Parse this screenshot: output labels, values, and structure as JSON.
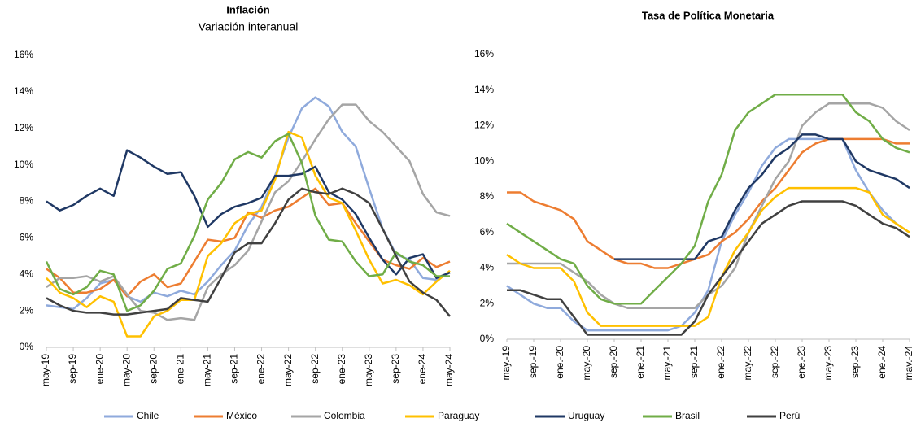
{
  "chart_data": [
    {
      "type": "line",
      "title": "Inflación",
      "subtitle": "Variación interanual",
      "categories": [
        "may-19",
        null,
        "sep-19",
        null,
        "ene-20",
        null,
        "may-20",
        null,
        "sep-20",
        null,
        "ene-21",
        null,
        "may-21",
        null,
        "sep-21",
        null,
        "ene-22",
        null,
        "may-22",
        null,
        "sep-22",
        null,
        "ene-23",
        null,
        "may-23",
        null,
        "sep-23",
        null,
        "ene-24",
        null,
        "may-24"
      ],
      "ylim": [
        0,
        16
      ],
      "yticks": [
        {
          "value": 0,
          "label": "0%"
        },
        {
          "value": 2,
          "label": "2%"
        },
        {
          "value": 4,
          "label": "4%"
        },
        {
          "value": 6,
          "label": "6%"
        },
        {
          "value": 8,
          "label": "8%"
        },
        {
          "value": 10,
          "label": "10%"
        },
        {
          "value": 12,
          "label": "12%"
        },
        {
          "value": 14,
          "label": "14%"
        },
        {
          "value": 16,
          "label": "16%"
        }
      ],
      "series": [
        {
          "name": "Chile",
          "color": "#8faadc",
          "values": [
            2.3,
            2.2,
            2.1,
            2.7,
            3.5,
            3.7,
            2.8,
            2.5,
            3.0,
            2.8,
            3.1,
            2.9,
            3.6,
            4.5,
            5.3,
            6.7,
            7.7,
            9.4,
            11.5,
            13.1,
            13.7,
            13.2,
            11.8,
            11.0,
            8.7,
            6.5,
            5.1,
            4.8,
            3.8,
            3.7,
            4.1
          ]
        },
        {
          "name": "México",
          "color": "#ed7d31",
          "values": [
            4.3,
            3.8,
            3.0,
            3.0,
            3.2,
            3.7,
            2.8,
            3.6,
            4.0,
            3.3,
            3.5,
            4.7,
            5.9,
            5.8,
            6.0,
            7.4,
            7.1,
            7.5,
            7.7,
            8.2,
            8.7,
            7.8,
            7.9,
            6.8,
            5.8,
            4.8,
            4.5,
            4.3,
            4.9,
            4.4,
            4.7
          ]
        },
        {
          "name": "Colombia",
          "color": "#a5a5a5",
          "values": [
            3.3,
            3.8,
            3.8,
            3.9,
            3.6,
            3.9,
            2.9,
            2.0,
            1.9,
            1.5,
            1.6,
            1.5,
            3.3,
            4.0,
            4.5,
            5.3,
            6.9,
            8.5,
            9.1,
            10.2,
            11.4,
            12.5,
            13.3,
            13.3,
            12.4,
            11.8,
            11.0,
            10.2,
            8.4,
            7.4,
            7.2
          ]
        },
        {
          "name": "Paraguay",
          "color": "#ffc000",
          "values": [
            3.8,
            3.0,
            2.7,
            2.2,
            2.8,
            2.5,
            0.6,
            0.6,
            1.7,
            2.0,
            2.6,
            2.6,
            5.0,
            5.7,
            6.8,
            7.3,
            7.5,
            9.2,
            11.8,
            11.5,
            9.4,
            8.2,
            7.9,
            6.4,
            4.8,
            3.5,
            3.7,
            3.4,
            2.9,
            3.6,
            4.2
          ]
        },
        {
          "name": "Uruguay",
          "color": "#1f3864",
          "values": [
            8.0,
            7.5,
            7.8,
            8.3,
            8.7,
            8.3,
            10.8,
            10.4,
            9.9,
            9.5,
            9.6,
            8.3,
            6.6,
            7.3,
            7.7,
            7.9,
            8.2,
            9.4,
            9.4,
            9.5,
            9.9,
            8.5,
            8.1,
            7.3,
            6.0,
            4.8,
            4.0,
            4.9,
            5.1,
            3.8,
            4.1
          ]
        },
        {
          "name": "Brasil",
          "color": "#70ad47",
          "values": [
            4.7,
            3.2,
            2.9,
            3.3,
            4.2,
            4.0,
            2.0,
            2.3,
            3.1,
            4.3,
            4.6,
            6.1,
            8.1,
            9.0,
            10.3,
            10.7,
            10.4,
            11.3,
            11.7,
            10.1,
            7.2,
            5.9,
            5.8,
            4.7,
            3.9,
            4.0,
            5.2,
            4.7,
            4.5,
            3.9,
            3.9
          ]
        },
        {
          "name": "Perú",
          "color": "#404040",
          "values": [
            2.7,
            2.3,
            2.0,
            1.9,
            1.9,
            1.8,
            1.8,
            1.9,
            2.0,
            2.1,
            2.7,
            2.6,
            2.5,
            3.8,
            5.2,
            5.7,
            5.7,
            6.8,
            8.1,
            8.7,
            8.5,
            8.4,
            8.7,
            8.4,
            7.9,
            6.5,
            5.0,
            3.6,
            3.0,
            2.6,
            1.7
          ]
        }
      ]
    },
    {
      "type": "line",
      "title": "Tasa de Política Monetaria",
      "categories": [
        "may.-19",
        null,
        "sep.-19",
        null,
        "ene.-20",
        null,
        "may.-20",
        null,
        "sep.-20",
        null,
        "ene.-21",
        null,
        "may.-21",
        null,
        "sep.-21",
        null,
        "ene.-22",
        null,
        "may.-22",
        null,
        "sep.-22",
        null,
        "ene.-23",
        null,
        "may.-23",
        null,
        "sep.-23",
        null,
        "ene.-24",
        null,
        "may.-24"
      ],
      "ylim": [
        0,
        16
      ],
      "yticks": [
        {
          "value": 0,
          "label": "0%"
        },
        {
          "value": 2,
          "label": "2%"
        },
        {
          "value": 4,
          "label": "4%"
        },
        {
          "value": 6,
          "label": "6%"
        },
        {
          "value": 8,
          "label": "8%"
        },
        {
          "value": 10,
          "label": "10%"
        },
        {
          "value": 12,
          "label": "12%"
        },
        {
          "value": 14,
          "label": "14%"
        },
        {
          "value": 16,
          "label": "16%"
        }
      ],
      "series": [
        {
          "name": "Chile",
          "color": "#8faadc",
          "values": [
            3.0,
            2.5,
            2.0,
            1.75,
            1.75,
            1.0,
            0.5,
            0.5,
            0.5,
            0.5,
            0.5,
            0.5,
            0.5,
            0.75,
            1.5,
            2.75,
            5.5,
            7.0,
            8.25,
            9.75,
            10.75,
            11.25,
            11.25,
            11.25,
            11.25,
            11.25,
            9.5,
            8.25,
            7.25,
            6.5,
            6.0
          ]
        },
        {
          "name": "México",
          "color": "#ed7d31",
          "values": [
            8.25,
            8.25,
            7.75,
            7.5,
            7.25,
            6.75,
            5.5,
            5.0,
            4.5,
            4.25,
            4.25,
            4.0,
            4.0,
            4.25,
            4.5,
            4.75,
            5.5,
            6.0,
            6.75,
            7.75,
            8.5,
            9.5,
            10.5,
            11.0,
            11.25,
            11.25,
            11.25,
            11.25,
            11.25,
            11.0,
            11.0
          ]
        },
        {
          "name": "Colombia",
          "color": "#a5a5a5",
          "values": [
            4.25,
            4.25,
            4.25,
            4.25,
            4.25,
            3.75,
            3.25,
            2.5,
            2.0,
            1.75,
            1.75,
            1.75,
            1.75,
            1.75,
            1.75,
            2.5,
            3.0,
            4.0,
            6.0,
            7.5,
            9.0,
            10.0,
            12.0,
            12.75,
            13.25,
            13.25,
            13.25,
            13.25,
            13.0,
            12.25,
            11.75
          ]
        },
        {
          "name": "Paraguay",
          "color": "#ffc000",
          "values": [
            4.75,
            4.25,
            4.0,
            4.0,
            4.0,
            3.25,
            1.5,
            0.75,
            0.75,
            0.75,
            0.75,
            0.75,
            0.75,
            0.75,
            0.75,
            1.25,
            3.5,
            5.0,
            6.0,
            7.25,
            8.0,
            8.5,
            8.5,
            8.5,
            8.5,
            8.5,
            8.5,
            8.25,
            7.0,
            6.5,
            6.0
          ]
        },
        {
          "name": "Uruguay",
          "color": "#1f3864",
          "values": [
            null,
            null,
            null,
            null,
            null,
            null,
            null,
            null,
            4.5,
            4.5,
            4.5,
            4.5,
            4.5,
            4.5,
            4.5,
            5.5,
            5.75,
            7.25,
            8.5,
            9.25,
            10.25,
            10.75,
            11.5,
            11.5,
            11.25,
            11.25,
            10.0,
            9.5,
            9.25,
            9.0,
            8.5
          ]
        },
        {
          "name": "Brasil",
          "color": "#70ad47",
          "values": [
            6.5,
            6.0,
            5.5,
            5.0,
            4.5,
            4.25,
            3.0,
            2.25,
            2.0,
            2.0,
            2.0,
            2.75,
            3.5,
            4.25,
            5.25,
            7.75,
            9.25,
            11.75,
            12.75,
            13.25,
            13.75,
            13.75,
            13.75,
            13.75,
            13.75,
            13.75,
            12.75,
            12.25,
            11.25,
            10.75,
            10.5
          ]
        },
        {
          "name": "Perú",
          "color": "#404040",
          "values": [
            2.75,
            2.75,
            2.5,
            2.25,
            2.25,
            1.25,
            0.25,
            0.25,
            0.25,
            0.25,
            0.25,
            0.25,
            0.25,
            0.25,
            1.0,
            2.5,
            3.5,
            4.5,
            5.5,
            6.5,
            7.0,
            7.5,
            7.75,
            7.75,
            7.75,
            7.75,
            7.5,
            7.0,
            6.5,
            6.25,
            5.75
          ]
        }
      ]
    }
  ]
}
